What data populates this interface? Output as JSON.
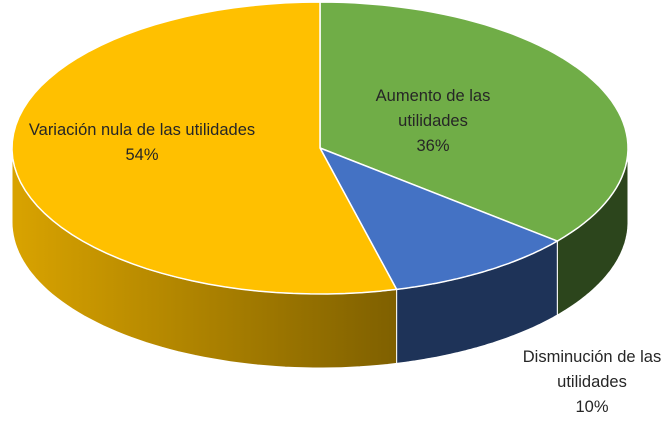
{
  "chart_data": {
    "type": "pie3d",
    "categories": [
      "Aumento de las utilidades",
      "Disminución de las utilidades",
      "Variación nula de las utilidades"
    ],
    "values": [
      36,
      10,
      54
    ],
    "value_labels": [
      "36%",
      "10%",
      "54%"
    ],
    "colors": [
      "#70ad47",
      "#4472c4",
      "#ffc000"
    ]
  }
}
